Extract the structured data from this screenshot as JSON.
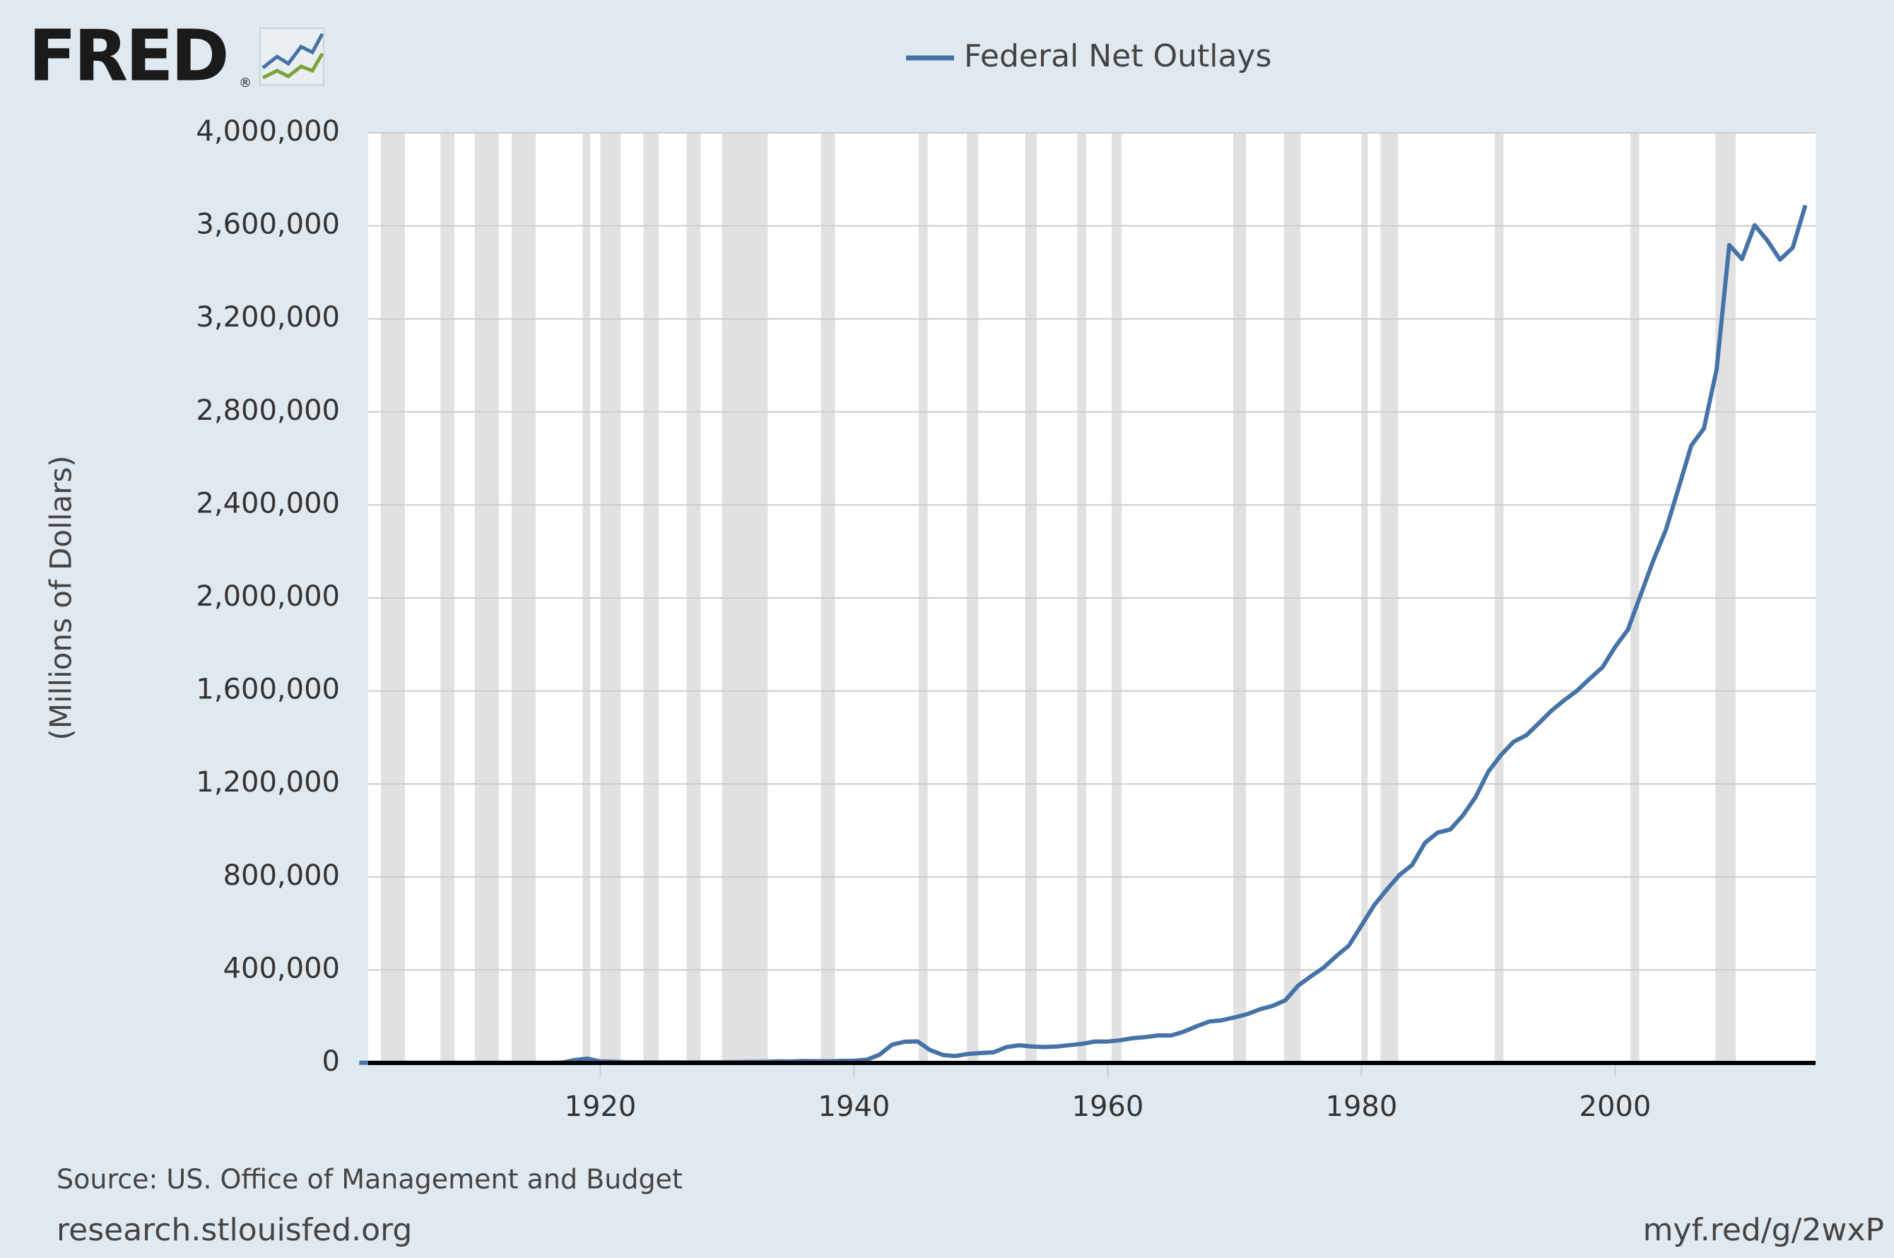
{
  "logo": {
    "text": "FRED",
    "mark": "®"
  },
  "chart_data": {
    "type": "line",
    "legend": "top",
    "y_label": "(Millions of Dollars)",
    "series": [
      {
        "name": "Federal Net Outlays",
        "color": "#4572a7",
        "x": [
          1901,
          1902,
          1903,
          1904,
          1905,
          1906,
          1907,
          1908,
          1909,
          1910,
          1911,
          1912,
          1913,
          1914,
          1915,
          1916,
          1917,
          1918,
          1919,
          1920,
          1921,
          1922,
          1923,
          1924,
          1925,
          1926,
          1927,
          1928,
          1929,
          1930,
          1931,
          1932,
          1933,
          1934,
          1935,
          1936,
          1937,
          1938,
          1939,
          1940,
          1941,
          1942,
          1943,
          1944,
          1945,
          1946,
          1947,
          1948,
          1949,
          1950,
          1951,
          1952,
          1953,
          1954,
          1955,
          1956,
          1957,
          1958,
          1959,
          1960,
          1961,
          1962,
          1963,
          1964,
          1965,
          1966,
          1967,
          1968,
          1969,
          1970,
          1971,
          1972,
          1973,
          1974,
          1975,
          1976,
          1977,
          1978,
          1979,
          1980,
          1981,
          1982,
          1983,
          1984,
          1985,
          1986,
          1987,
          1988,
          1989,
          1990,
          1991,
          1992,
          1993,
          1994,
          1995,
          1996,
          1997,
          1998,
          1999,
          2000,
          2001,
          2002,
          2003,
          2004,
          2005,
          2006,
          2007,
          2008,
          2009,
          2010,
          2011,
          2012,
          2013,
          2014,
          2015
        ],
        "values": [
          525,
          485,
          517,
          584,
          567,
          570,
          579,
          659,
          694,
          694,
          691,
          690,
          715,
          726,
          746,
          713,
          1954,
          12677,
          18493,
          6358,
          5062,
          3289,
          3140,
          2908,
          2924,
          2930,
          2857,
          2961,
          3127,
          3320,
          3577,
          4659,
          4598,
          6541,
          6412,
          8228,
          7580,
          6840,
          9141,
          9468,
          13653,
          35137,
          78555,
          91304,
          92712,
          55232,
          34496,
          29764,
          38835,
          42562,
          45514,
          67686,
          76101,
          70855,
          68444,
          70640,
          76578,
          82405,
          92098,
          92191,
          97723,
          106821,
          111316,
          118528,
          118228,
          134532,
          157464,
          178134,
          183640,
          195649,
          210172,
          230681,
          245707,
          269359,
          332332,
          371792,
          409218,
          458746,
          504028,
          590941,
          678241,
          745743,
          808364,
          851805,
          946344,
          990382,
          1004017,
          1064416,
          1143743,
          1252993,
          1324226,
          1381529,
          1409386,
          1461753,
          1515742,
          1560484,
          1601116,
          1652458,
          1701842,
          1788950,
          1862846,
          2010894,
          2159899,
          2292841,
          2471957,
          2655050,
          2728686,
          2982544,
          3517677,
          3457079,
          3603059,
          3536951,
          3454647,
          3506114,
          3688383
        ]
      }
    ],
    "shaded_periods": [
      [
        1902.7,
        1904.6
      ],
      [
        1907.4,
        1908.5
      ],
      [
        1910.1,
        1912.0
      ],
      [
        1913.0,
        1914.9
      ],
      [
        1918.6,
        1919.2
      ],
      [
        1920.0,
        1921.6
      ],
      [
        1923.4,
        1924.6
      ],
      [
        1926.8,
        1927.9
      ],
      [
        1929.6,
        1933.2
      ],
      [
        1937.4,
        1938.5
      ],
      [
        1945.1,
        1945.8
      ],
      [
        1948.9,
        1949.8
      ],
      [
        1953.5,
        1954.4
      ],
      [
        1957.6,
        1958.3
      ],
      [
        1960.3,
        1961.1
      ],
      [
        1969.9,
        1970.9
      ],
      [
        1973.9,
        1975.2
      ],
      [
        1980.0,
        1980.5
      ],
      [
        1981.5,
        1982.9
      ],
      [
        1990.5,
        1991.2
      ],
      [
        2001.2,
        2001.9
      ],
      [
        2007.9,
        2009.5
      ]
    ],
    "xlim": [
      1901.7,
      2015.8
    ],
    "xticks": [
      1920,
      1940,
      1960,
      1980,
      2000
    ],
    "ylim": [
      0,
      4000000
    ],
    "yticks": [
      0,
      {
        "value": 400000,
        "label": "400,000"
      },
      {
        "value": 800000,
        "label": "800,000"
      },
      {
        "value": 1200000,
        "label": "1,200,000"
      },
      {
        "value": 1600000,
        "label": "1,600,000"
      },
      {
        "value": 2000000,
        "label": "2,000,000"
      },
      {
        "value": 2400000,
        "label": "2,400,000"
      },
      {
        "value": 2800000,
        "label": "2,800,000"
      },
      {
        "value": 3200000,
        "label": "3,200,000"
      },
      {
        "value": 3600000,
        "label": "3,600,000"
      },
      {
        "value": 4000000,
        "label": "4,000,000"
      }
    ],
    "grid": true,
    "source": "Source: US. Office of Management and Budget",
    "site": "research.stlouisfed.org",
    "short_url": "myf.red/g/2wxP"
  }
}
